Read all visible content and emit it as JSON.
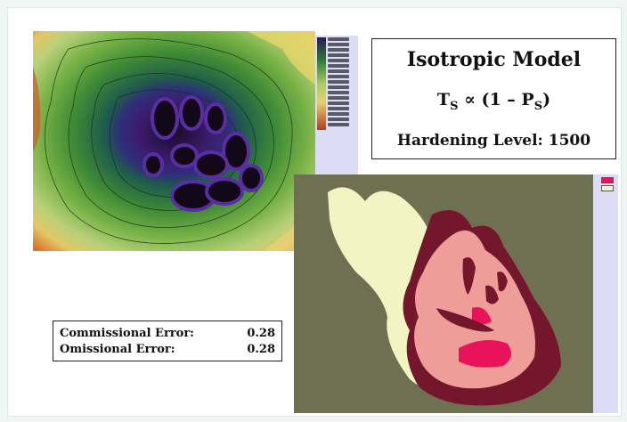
{
  "title_box": {
    "title": "Isotropic Model",
    "formula_t": "T",
    "formula_sub1": "S",
    "formula_mid": " ∝ (1 – P",
    "formula_sub2": "S",
    "formula_end": ")",
    "hardening": "Hardening Level: 1500"
  },
  "errors": [
    {
      "label": "Commissional Error:",
      "value": "0.28"
    },
    {
      "label": "Omissional Error:",
      "value": "0.28"
    }
  ],
  "colors": {
    "map_background": "#6f7052",
    "class_light": "#f3f4c4",
    "class_pink": "#ef9d99",
    "class_dark": "#74172c",
    "class_hot": "#e8135a"
  },
  "icons": {
    "elevation_legend": "color-ramp-legend",
    "class_legend": "class-swatch-legend"
  }
}
